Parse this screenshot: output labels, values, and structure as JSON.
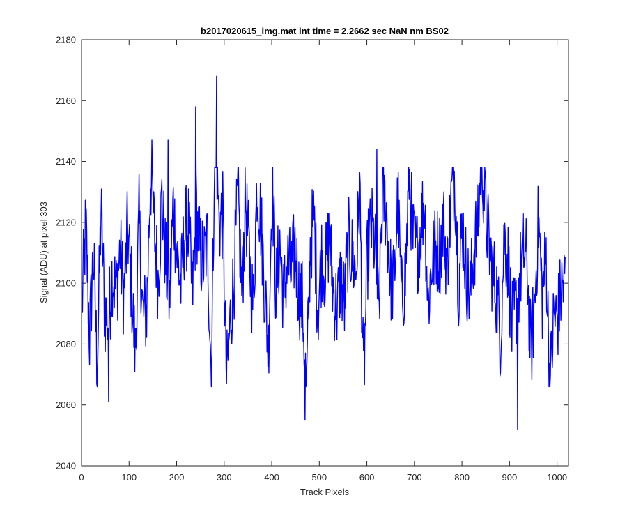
{
  "chart_data": {
    "type": "line",
    "title": "b2017020615_img.mat int time = 2.2662 sec  NaN nm BS02",
    "xlabel": "Track Pixels",
    "ylabel": "Signal (ADU) at pixel 303",
    "xlim": [
      0,
      1024
    ],
    "ylim": [
      2040,
      2180
    ],
    "xticks": [
      0,
      100,
      200,
      300,
      400,
      500,
      600,
      700,
      800,
      900,
      1000
    ],
    "yticks": [
      2040,
      2060,
      2080,
      2100,
      2120,
      2140,
      2160,
      2180
    ],
    "grid": false,
    "series": [
      {
        "color": "#0000ff",
        "x_start": 1,
        "x_step": 8,
        "values": [
          2093,
          2119,
          2082,
          2110,
          2072,
          2124,
          2090,
          2088,
          2104,
          2097,
          2111,
          2096,
          2118,
          2099,
          2076,
          2121,
          2089,
          2091,
          2136,
          2118,
          2101,
          2128,
          2107,
          2094,
          2126,
          2109,
          2099,
          2117,
          2119,
          2095,
          2124,
          2110,
          2107,
          2114,
          2069,
          2158,
          2120,
          2122,
          2068,
          2088,
          2103,
          2130,
          2096,
          2127,
          2108,
          2092,
          2133,
          2121,
          2099,
          2078,
          2134,
          2097,
          2113,
          2095,
          2107,
          2103,
          2112,
          2097,
          2093,
          2063,
          2112,
          2122,
          2091,
          2109,
          2104,
          2116,
          2098,
          2091,
          2102,
          2093,
          2114,
          2109,
          2103,
          2131,
          2066,
          2108,
          2119,
          2112,
          2088,
          2130,
          2124,
          2102,
          2099,
          2128,
          2095,
          2102,
          2136,
          2114,
          2109,
          2118,
          2128,
          2093,
          2107,
          2112,
          2110,
          2120,
          2105,
          2127,
          2137,
          2099,
          2120,
          2104,
          2095,
          2111,
          2119,
          2141,
          2126,
          2112,
          2103,
          2097,
          2082,
          2116,
          2107,
          2085,
          2091,
          2101,
          2111,
          2106,
          2077,
          2094,
          2121,
          2095,
          2110,
          2065,
          2089,
          2088,
          2098,
          2100
        ]
      }
    ],
    "peaks": [
      {
        "x": 284,
        "y": 2168
      },
      {
        "x": 240,
        "y": 2158
      },
      {
        "x": 148,
        "y": 2147
      },
      {
        "x": 182,
        "y": 2147
      },
      {
        "x": 621,
        "y": 2144
      },
      {
        "x": 917,
        "y": 2052
      },
      {
        "x": 470,
        "y": 2055
      },
      {
        "x": 57,
        "y": 2061
      }
    ]
  }
}
